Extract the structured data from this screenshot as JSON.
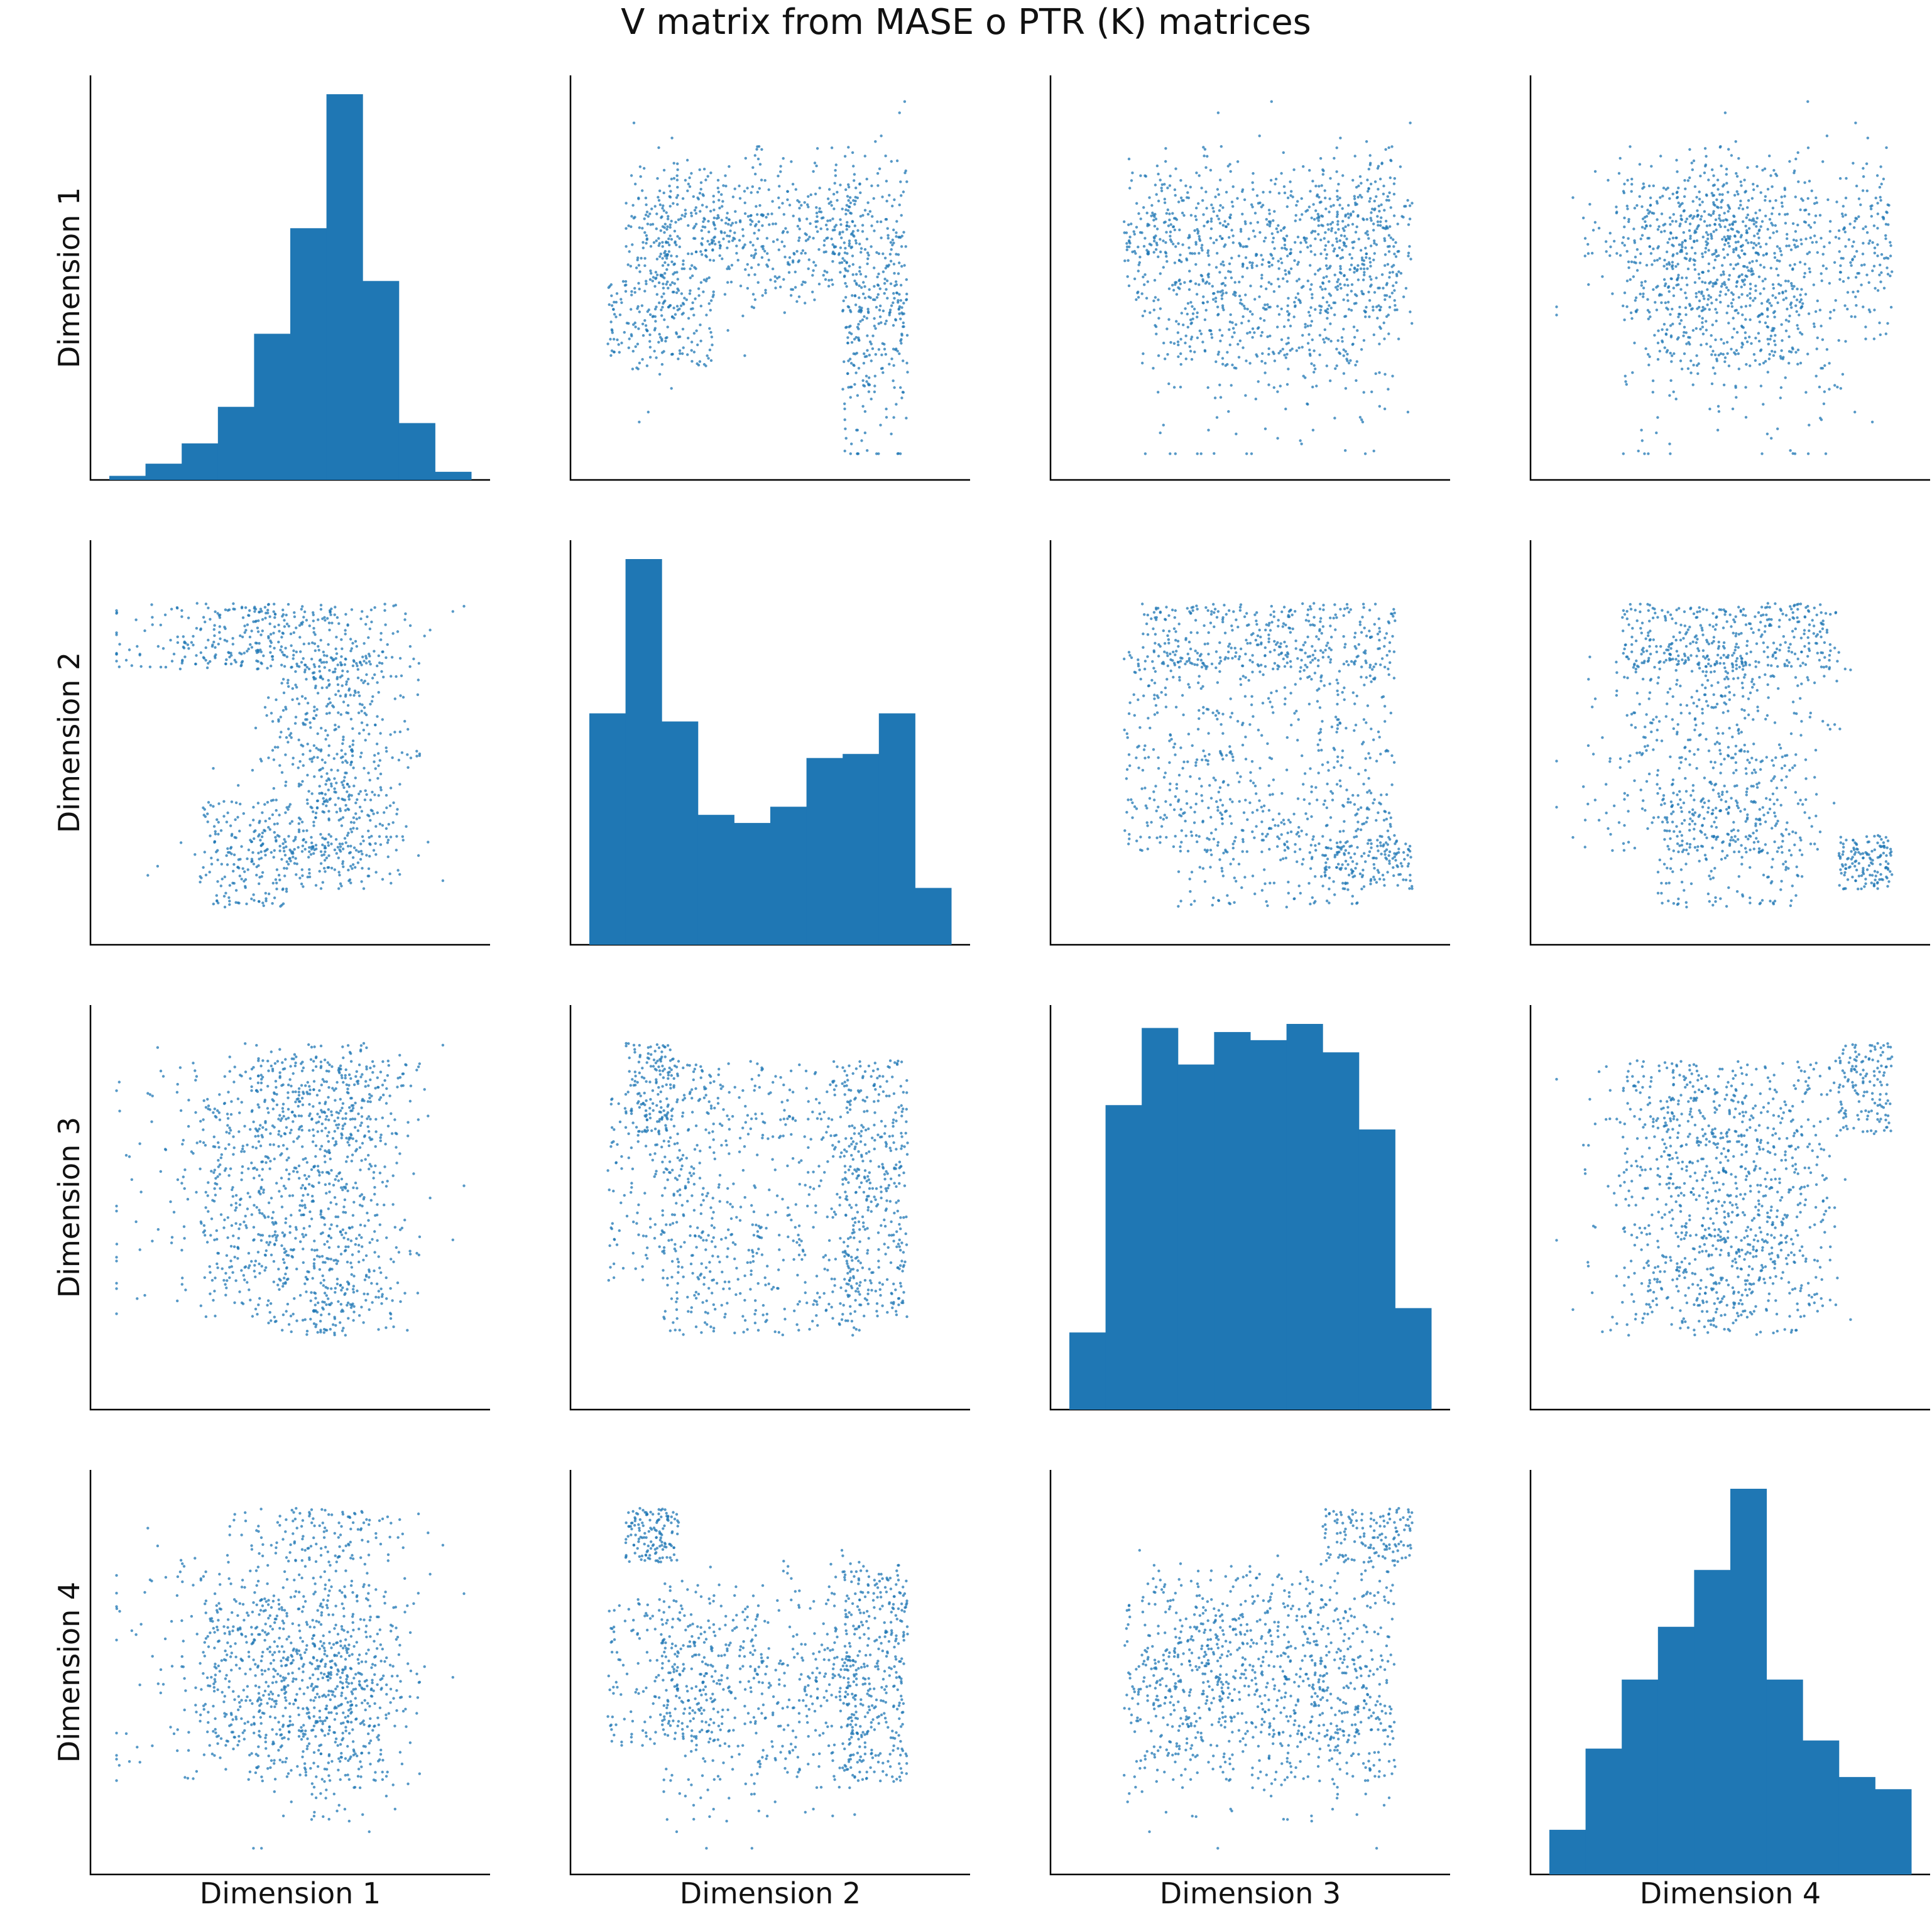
{
  "chart_data": {
    "type": "scatter",
    "title": "V matrix from MASE o PTR (K) matrices",
    "variables": [
      "Dimension 1",
      "Dimension 2",
      "Dimension 3",
      "Dimension 4"
    ],
    "marker_color": "#1f77b4",
    "diagonal": "histogram",
    "histograms": [
      {
        "variable": "Dimension 1",
        "bins": 10,
        "counts": [
          1,
          4,
          9,
          18,
          36,
          62,
          95,
          49,
          14,
          2
        ]
      },
      {
        "variable": "Dimension 2",
        "bins": 10,
        "counts": [
          57,
          95,
          55,
          32,
          30,
          34,
          46,
          47,
          57,
          14
        ]
      },
      {
        "variable": "Dimension 3",
        "bins": 10,
        "counts": [
          19,
          75,
          94,
          85,
          93,
          91,
          95,
          88,
          69,
          25
        ]
      },
      {
        "variable": "Dimension 4",
        "bins": 10,
        "counts": [
          11,
          31,
          48,
          61,
          75,
          95,
          48,
          33,
          24,
          21
        ]
      }
    ],
    "scatter_points_per_panel": 1200,
    "grid": false,
    "tick_labels": false
  }
}
